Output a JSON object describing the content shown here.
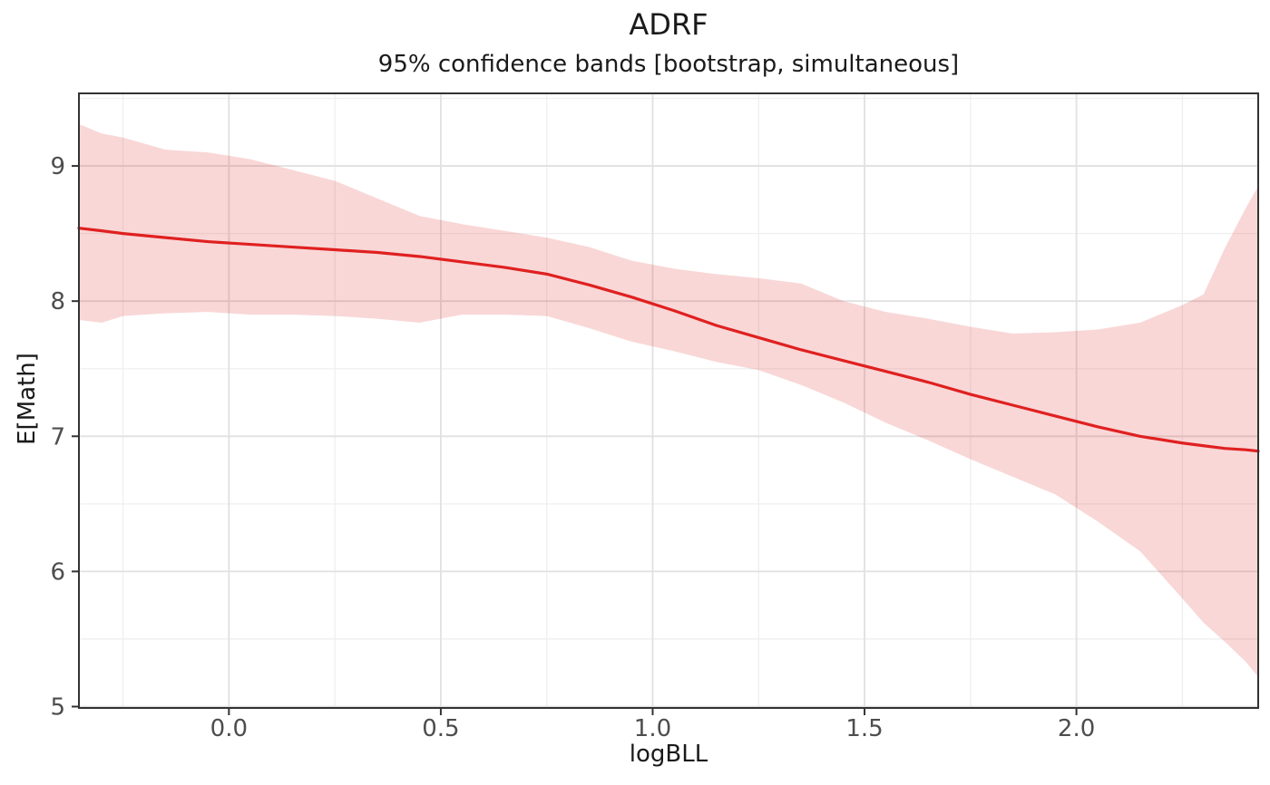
{
  "chart_data": {
    "type": "line",
    "title": "ADRF",
    "subtitle": "95% confidence bands [bootstrap, simultaneous]",
    "xlabel": "logBLL",
    "ylabel": "E[Math]",
    "xlim": [
      -0.354,
      2.429
    ],
    "ylim": [
      4.99,
      9.537
    ],
    "x_ticks": [
      0.0,
      0.5,
      1.0,
      1.5,
      2.0
    ],
    "x_tick_labels": [
      "0.0",
      "0.5",
      "1.0",
      "1.5",
      "2.0"
    ],
    "x_minor_ticks": [
      -0.25,
      0.25,
      0.75,
      1.25,
      1.75,
      2.25
    ],
    "y_ticks": [
      5,
      6,
      7,
      8,
      9
    ],
    "y_tick_labels": [
      "5",
      "6",
      "7",
      "8",
      "9"
    ],
    "y_minor_ticks": [
      5.5,
      6.5,
      7.5,
      8.5,
      9.5
    ],
    "grid": true,
    "legend_position": "none",
    "colors": {
      "line": "#e02020",
      "band_fill": "rgba(224,32,32,0.18)",
      "grid_major": "#e1e1e1",
      "grid_minor": "#efefef",
      "panel_border": "#333333",
      "tick_mark": "#333333",
      "tick_text": "#4d4d4d",
      "text": "#1a1a1a",
      "panel_bg": "#ffffff"
    },
    "series": {
      "x": [
        -0.354,
        -0.3,
        -0.25,
        -0.15,
        -0.05,
        0.05,
        0.15,
        0.25,
        0.35,
        0.45,
        0.55,
        0.65,
        0.75,
        0.85,
        0.95,
        1.05,
        1.15,
        1.25,
        1.35,
        1.45,
        1.55,
        1.65,
        1.75,
        1.85,
        1.95,
        2.05,
        2.15,
        2.25,
        2.3,
        2.35,
        2.4,
        2.429
      ],
      "estimate": [
        8.54,
        8.52,
        8.5,
        8.47,
        8.44,
        8.42,
        8.4,
        8.38,
        8.36,
        8.33,
        8.29,
        8.25,
        8.2,
        8.12,
        8.03,
        7.93,
        7.82,
        7.73,
        7.64,
        7.56,
        7.48,
        7.4,
        7.31,
        7.23,
        7.15,
        7.07,
        7.0,
        6.95,
        6.93,
        6.91,
        6.9,
        6.89
      ],
      "upper": [
        9.31,
        9.24,
        9.21,
        9.12,
        9.1,
        9.05,
        8.97,
        8.89,
        8.76,
        8.63,
        8.57,
        8.52,
        8.47,
        8.4,
        8.3,
        8.24,
        8.2,
        8.17,
        8.13,
        8.0,
        7.92,
        7.87,
        7.81,
        7.76,
        7.77,
        7.79,
        7.84,
        7.97,
        8.05,
        8.39,
        8.69,
        8.85
      ],
      "lower": [
        7.86,
        7.84,
        7.89,
        7.91,
        7.92,
        7.9,
        7.9,
        7.89,
        7.87,
        7.84,
        7.9,
        7.9,
        7.89,
        7.8,
        7.7,
        7.63,
        7.55,
        7.49,
        7.38,
        7.25,
        7.1,
        6.97,
        6.83,
        6.7,
        6.57,
        6.37,
        6.15,
        5.8,
        5.62,
        5.48,
        5.33,
        5.22
      ]
    }
  }
}
